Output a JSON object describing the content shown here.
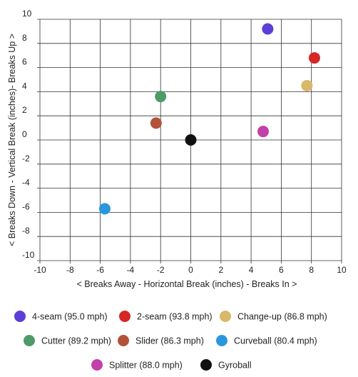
{
  "chart_data": {
    "type": "scatter",
    "title": "",
    "xlabel": "< Breaks Away - Horizontal Break (inches) - Breaks In >",
    "ylabel": "< Breaks Down - Vertical Break (inches)- Breaks Up >",
    "xlim": [
      -10,
      10
    ],
    "ylim": [
      -10,
      10
    ],
    "x_ticks": [
      "-10",
      "-8",
      "-6",
      "-4",
      "-2",
      "0",
      "2",
      "4",
      "6",
      "8",
      "10"
    ],
    "y_ticks": [
      "10",
      "8",
      "6",
      "4",
      "2",
      "0",
      "-2",
      "-4",
      "-6",
      "-8",
      "-10"
    ],
    "grid": true,
    "legend_position": "bottom",
    "series": [
      {
        "name": "4-seam (95.0 mph)",
        "color": "#5b3fd6",
        "x": 5.1,
        "y": 9.2
      },
      {
        "name": "2-seam (93.8 mph)",
        "color": "#d62626",
        "x": 8.2,
        "y": 6.8
      },
      {
        "name": "Change-up (86.8 mph)",
        "color": "#d9b86a",
        "x": 7.7,
        "y": 4.5
      },
      {
        "name": "Cutter (89.2 mph)",
        "color": "#4f9a6a",
        "x": -2.0,
        "y": 3.6
      },
      {
        "name": "Slider (86.3 mph)",
        "color": "#b3533a",
        "x": -2.3,
        "y": 1.4
      },
      {
        "name": "Curveball (80.4 mph)",
        "color": "#2a97dc",
        "x": -5.7,
        "y": -5.7
      },
      {
        "name": "Splitter (88.0 mph)",
        "color": "#c240a8",
        "x": 4.8,
        "y": 0.7
      },
      {
        "name": "Gyroball",
        "color": "#111111",
        "x": 0.0,
        "y": 0.0
      }
    ]
  }
}
